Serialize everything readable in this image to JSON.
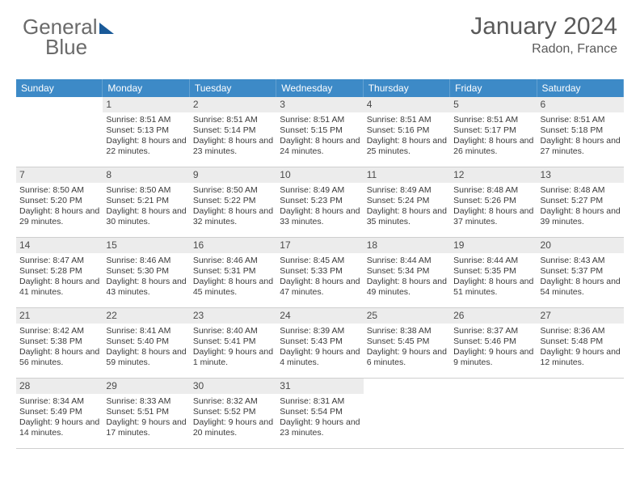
{
  "brand": {
    "part1": "General",
    "part2": "Blue"
  },
  "title": {
    "month": "January 2024",
    "location": "Radon, France"
  },
  "colors": {
    "header_bg": "#3d8ac7",
    "daynum_bg": "#ececec",
    "text": "#3a3a3a",
    "title_text": "#5a5a5a",
    "border": "#cfcfcf"
  },
  "dow": [
    "Sunday",
    "Monday",
    "Tuesday",
    "Wednesday",
    "Thursday",
    "Friday",
    "Saturday"
  ],
  "start_blank": 1,
  "days": [
    {
      "n": 1,
      "rise": "8:51 AM",
      "set": "5:13 PM",
      "dl": "8 hours and 22 minutes."
    },
    {
      "n": 2,
      "rise": "8:51 AM",
      "set": "5:14 PM",
      "dl": "8 hours and 23 minutes."
    },
    {
      "n": 3,
      "rise": "8:51 AM",
      "set": "5:15 PM",
      "dl": "8 hours and 24 minutes."
    },
    {
      "n": 4,
      "rise": "8:51 AM",
      "set": "5:16 PM",
      "dl": "8 hours and 25 minutes."
    },
    {
      "n": 5,
      "rise": "8:51 AM",
      "set": "5:17 PM",
      "dl": "8 hours and 26 minutes."
    },
    {
      "n": 6,
      "rise": "8:51 AM",
      "set": "5:18 PM",
      "dl": "8 hours and 27 minutes."
    },
    {
      "n": 7,
      "rise": "8:50 AM",
      "set": "5:20 PM",
      "dl": "8 hours and 29 minutes."
    },
    {
      "n": 8,
      "rise": "8:50 AM",
      "set": "5:21 PM",
      "dl": "8 hours and 30 minutes."
    },
    {
      "n": 9,
      "rise": "8:50 AM",
      "set": "5:22 PM",
      "dl": "8 hours and 32 minutes."
    },
    {
      "n": 10,
      "rise": "8:49 AM",
      "set": "5:23 PM",
      "dl": "8 hours and 33 minutes."
    },
    {
      "n": 11,
      "rise": "8:49 AM",
      "set": "5:24 PM",
      "dl": "8 hours and 35 minutes."
    },
    {
      "n": 12,
      "rise": "8:48 AM",
      "set": "5:26 PM",
      "dl": "8 hours and 37 minutes."
    },
    {
      "n": 13,
      "rise": "8:48 AM",
      "set": "5:27 PM",
      "dl": "8 hours and 39 minutes."
    },
    {
      "n": 14,
      "rise": "8:47 AM",
      "set": "5:28 PM",
      "dl": "8 hours and 41 minutes."
    },
    {
      "n": 15,
      "rise": "8:46 AM",
      "set": "5:30 PM",
      "dl": "8 hours and 43 minutes."
    },
    {
      "n": 16,
      "rise": "8:46 AM",
      "set": "5:31 PM",
      "dl": "8 hours and 45 minutes."
    },
    {
      "n": 17,
      "rise": "8:45 AM",
      "set": "5:33 PM",
      "dl": "8 hours and 47 minutes."
    },
    {
      "n": 18,
      "rise": "8:44 AM",
      "set": "5:34 PM",
      "dl": "8 hours and 49 minutes."
    },
    {
      "n": 19,
      "rise": "8:44 AM",
      "set": "5:35 PM",
      "dl": "8 hours and 51 minutes."
    },
    {
      "n": 20,
      "rise": "8:43 AM",
      "set": "5:37 PM",
      "dl": "8 hours and 54 minutes."
    },
    {
      "n": 21,
      "rise": "8:42 AM",
      "set": "5:38 PM",
      "dl": "8 hours and 56 minutes."
    },
    {
      "n": 22,
      "rise": "8:41 AM",
      "set": "5:40 PM",
      "dl": "8 hours and 59 minutes."
    },
    {
      "n": 23,
      "rise": "8:40 AM",
      "set": "5:41 PM",
      "dl": "9 hours and 1 minute."
    },
    {
      "n": 24,
      "rise": "8:39 AM",
      "set": "5:43 PM",
      "dl": "9 hours and 4 minutes."
    },
    {
      "n": 25,
      "rise": "8:38 AM",
      "set": "5:45 PM",
      "dl": "9 hours and 6 minutes."
    },
    {
      "n": 26,
      "rise": "8:37 AM",
      "set": "5:46 PM",
      "dl": "9 hours and 9 minutes."
    },
    {
      "n": 27,
      "rise": "8:36 AM",
      "set": "5:48 PM",
      "dl": "9 hours and 12 minutes."
    },
    {
      "n": 28,
      "rise": "8:34 AM",
      "set": "5:49 PM",
      "dl": "9 hours and 14 minutes."
    },
    {
      "n": 29,
      "rise": "8:33 AM",
      "set": "5:51 PM",
      "dl": "9 hours and 17 minutes."
    },
    {
      "n": 30,
      "rise": "8:32 AM",
      "set": "5:52 PM",
      "dl": "9 hours and 20 minutes."
    },
    {
      "n": 31,
      "rise": "8:31 AM",
      "set": "5:54 PM",
      "dl": "9 hours and 23 minutes."
    }
  ],
  "labels": {
    "sunrise": "Sunrise:",
    "sunset": "Sunset:",
    "daylight": "Daylight:"
  }
}
